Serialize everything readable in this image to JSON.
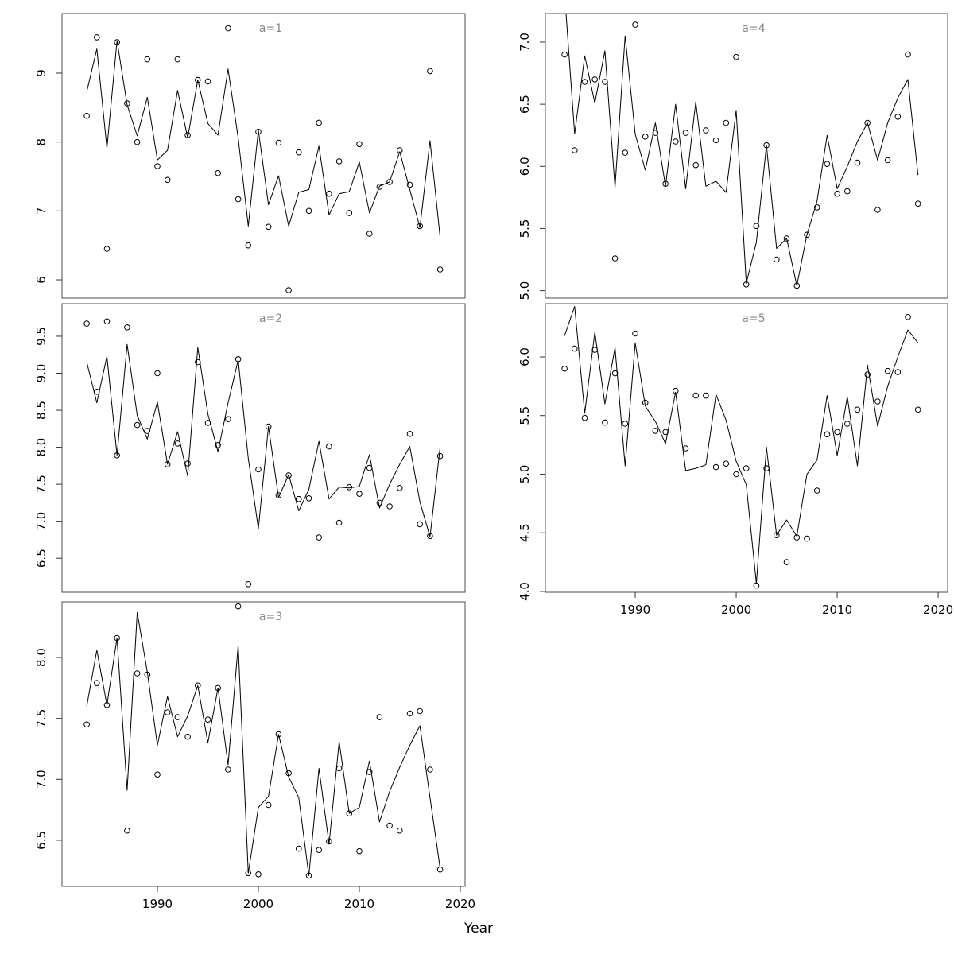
{
  "chart_data": {
    "type": "line",
    "subtype": "line-with-open-circle-points, 5 small-multiple panels",
    "title": "",
    "xlabel": "Year",
    "ylabel": "",
    "grid": false,
    "legend": false,
    "x": [
      1983,
      1984,
      1985,
      1986,
      1987,
      1988,
      1989,
      1990,
      1991,
      1992,
      1993,
      1994,
      1995,
      1996,
      1997,
      1998,
      1999,
      2000,
      2001,
      2002,
      2003,
      2004,
      2005,
      2006,
      2007,
      2008,
      2009,
      2010,
      2011,
      2012,
      2013,
      2014,
      2015,
      2016,
      2017,
      2018
    ],
    "xticks": [
      "1990",
      "2000",
      "2010",
      "2020"
    ],
    "styles": {
      "line_color": "#000000",
      "point_color": "#000000",
      "frame_color": "#4d4d4d",
      "tick_color": "#333333",
      "tick_label_color": "#000000",
      "panel_label_color": "#888888"
    },
    "panels": [
      {
        "label": "a=1",
        "xlim": [
          1980.55,
          2020.47
        ],
        "ylim": [
          5.735,
          9.865
        ],
        "yticks": [
          "6",
          "7",
          "8",
          "9"
        ],
        "xaxis": false,
        "series": [
          {
            "name": "fit",
            "values": [
              8.73,
              9.35,
              7.91,
              9.47,
              8.54,
              8.09,
              8.65,
              7.74,
              7.88,
              8.75,
              8.06,
              8.9,
              8.27,
              8.1,
              9.06,
              8.06,
              6.78,
              8.17,
              7.09,
              7.51,
              6.78,
              7.27,
              7.31,
              7.94,
              6.94,
              7.25,
              7.28,
              7.71,
              6.97,
              7.36,
              7.42,
              7.86,
              7.31,
              6.76,
              8.02,
              6.62
            ]
          },
          {
            "name": "observed",
            "values": [
              8.38,
              9.52,
              6.45,
              9.45,
              8.56,
              8.0,
              9.2,
              7.65,
              7.45,
              9.2,
              8.1,
              8.9,
              8.88,
              7.55,
              9.65,
              7.17,
              6.5,
              8.15,
              6.77,
              7.99,
              5.85,
              7.85,
              7.0,
              8.28,
              7.25,
              7.72,
              6.97,
              7.97,
              6.67,
              7.35,
              7.42,
              7.88,
              7.38,
              6.78,
              9.03,
              6.15
            ]
          }
        ]
      },
      {
        "label": "a=2",
        "xlim": [
          1980.55,
          2020.47
        ],
        "ylim": [
          6.04,
          9.94
        ],
        "yticks": [
          "6.5",
          "7.0",
          "7.5",
          "8.0",
          "8.5",
          "9.0",
          "9.5"
        ],
        "xaxis": false,
        "series": [
          {
            "name": "fit",
            "values": [
              9.15,
              8.6,
              9.23,
              7.89,
              9.39,
              8.43,
              8.11,
              8.61,
              7.77,
              8.21,
              7.61,
              9.35,
              8.45,
              7.94,
              8.6,
              9.18,
              7.85,
              6.9,
              8.28,
              7.32,
              7.63,
              7.14,
              7.43,
              8.08,
              7.3,
              7.46,
              7.45,
              7.47,
              7.9,
              7.18,
              7.5,
              7.77,
              8.01,
              7.26,
              6.79,
              8.0
            ]
          },
          {
            "name": "observed",
            "values": [
              9.67,
              8.75,
              9.7,
              7.89,
              9.62,
              8.3,
              8.22,
              9.0,
              7.77,
              8.05,
              7.78,
              9.15,
              8.33,
              8.03,
              8.38,
              9.19,
              6.15,
              7.7,
              8.28,
              7.35,
              7.62,
              7.3,
              7.31,
              6.78,
              8.01,
              6.98,
              7.46,
              7.37,
              7.72,
              7.25,
              7.2,
              7.45,
              8.18,
              6.96,
              6.8,
              7.88
            ]
          }
        ]
      },
      {
        "label": "a=3",
        "xlim": [
          1980.55,
          2020.47
        ],
        "ylim": [
          6.121,
          8.457
        ],
        "yticks": [
          "6.5",
          "7.0",
          "7.5",
          "8.0"
        ],
        "xaxis": true,
        "series": [
          {
            "name": "fit",
            "values": [
              7.6,
              8.06,
              7.61,
              8.16,
              6.91,
              8.37,
              7.88,
              7.28,
              7.68,
              7.35,
              7.52,
              7.77,
              7.3,
              7.75,
              7.12,
              8.1,
              6.23,
              6.77,
              6.86,
              7.37,
              7.02,
              6.85,
              6.21,
              7.09,
              6.47,
              7.31,
              6.72,
              6.77,
              7.15,
              6.65,
              6.9,
              7.1,
              7.28,
              7.44,
              6.85,
              6.27
            ]
          },
          {
            "name": "observed",
            "values": [
              7.45,
              7.79,
              7.61,
              8.16,
              6.58,
              7.87,
              7.86,
              7.04,
              7.55,
              7.51,
              7.35,
              7.77,
              7.49,
              7.75,
              7.08,
              8.42,
              6.23,
              6.22,
              6.79,
              7.37,
              7.05,
              6.43,
              6.21,
              6.42,
              6.49,
              7.09,
              6.72,
              6.41,
              7.06,
              7.51,
              6.62,
              6.58,
              7.54,
              7.56,
              7.08,
              6.26
            ]
          }
        ]
      },
      {
        "label": "a=4",
        "xlim": [
          1981.1,
          2020.94
        ],
        "ylim": [
          4.94,
          7.23
        ],
        "yticks": [
          "5.0",
          "5.5",
          "6.0",
          "6.5",
          "7.0"
        ],
        "xaxis": false,
        "series": [
          {
            "name": "fit",
            "values": [
              7.4,
              6.26,
              6.89,
              6.51,
              6.93,
              5.83,
              7.05,
              6.26,
              5.97,
              6.35,
              5.84,
              6.5,
              5.82,
              6.52,
              5.84,
              5.88,
              5.79,
              6.45,
              5.06,
              5.39,
              6.17,
              5.34,
              5.42,
              5.04,
              5.45,
              5.72,
              6.25,
              5.82,
              6.0,
              6.2,
              6.35,
              6.05,
              6.35,
              6.55,
              6.7,
              5.93
            ]
          },
          {
            "name": "observed",
            "values": [
              6.9,
              6.13,
              6.68,
              6.7,
              6.68,
              5.26,
              6.11,
              7.14,
              6.24,
              6.27,
              5.86,
              6.2,
              6.27,
              6.01,
              6.29,
              6.21,
              6.35,
              6.88,
              5.05,
              5.52,
              6.17,
              5.25,
              5.42,
              5.04,
              5.45,
              5.67,
              6.02,
              5.78,
              5.8,
              6.03,
              6.35,
              5.65,
              6.05,
              6.4,
              6.9,
              5.7
            ]
          }
        ]
      },
      {
        "label": "a=5",
        "xlim": [
          1981.1,
          2020.94
        ],
        "ylim": [
          3.993,
          6.454
        ],
        "yticks": [
          "4.0",
          "4.5",
          "5.0",
          "5.5",
          "6.0"
        ],
        "xaxis": true,
        "series": [
          {
            "name": "fit",
            "values": [
              6.18,
              6.43,
              5.52,
              6.21,
              5.6,
              6.08,
              5.07,
              6.12,
              5.58,
              5.45,
              5.26,
              5.7,
              5.03,
              5.05,
              5.08,
              5.68,
              5.46,
              5.11,
              4.91,
              4.07,
              5.23,
              4.48,
              4.61,
              4.47,
              5.0,
              5.12,
              5.67,
              5.16,
              5.66,
              5.07,
              5.93,
              5.41,
              5.75,
              6.0,
              6.23,
              6.12
            ]
          },
          {
            "name": "observed",
            "values": [
              5.9,
              6.07,
              5.48,
              6.06,
              5.44,
              5.86,
              5.43,
              6.2,
              5.61,
              5.37,
              5.36,
              5.71,
              5.22,
              5.67,
              5.67,
              5.06,
              5.09,
              5.0,
              5.05,
              4.05,
              5.05,
              4.48,
              4.25,
              4.46,
              4.45,
              4.86,
              5.34,
              5.36,
              5.43,
              5.55,
              5.85,
              5.62,
              5.88,
              5.87,
              6.34,
              5.55
            ]
          }
        ]
      }
    ]
  }
}
